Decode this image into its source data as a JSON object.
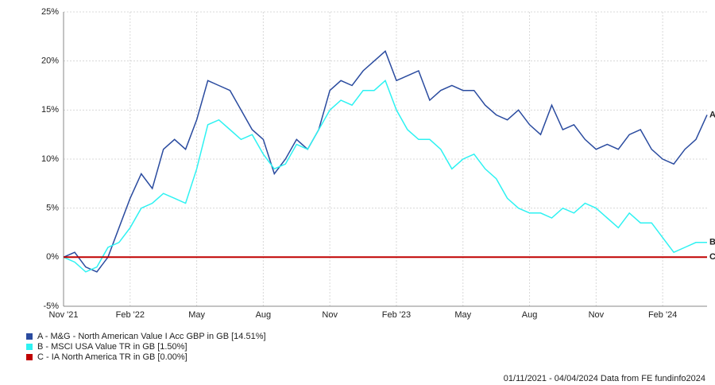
{
  "chart_data": {
    "type": "line",
    "categories": [
      "Nov '21",
      null,
      null,
      null,
      null,
      null,
      "Feb '22",
      null,
      null,
      null,
      null,
      null,
      "May",
      null,
      null,
      null,
      null,
      null,
      "Aug",
      null,
      null,
      null,
      null,
      null,
      "Nov",
      null,
      null,
      null,
      null,
      null,
      "Feb '23",
      null,
      null,
      null,
      null,
      null,
      "May",
      null,
      null,
      null,
      null,
      null,
      "Aug",
      null,
      null,
      null,
      null,
      null,
      "Nov",
      null,
      null,
      null,
      null,
      null,
      "Feb '24",
      null,
      null,
      null,
      null
    ],
    "series": [
      {
        "name": "A - M&G - North American Value I Acc GBP in GB [14.51%]",
        "end_label": "A",
        "color": "#2a4b9f",
        "values": [
          0,
          0.5,
          -1,
          -1.5,
          0,
          3,
          6,
          8.5,
          7,
          11,
          12,
          11,
          14,
          18,
          17.5,
          17,
          15,
          13,
          12,
          8.5,
          10,
          12,
          11,
          13,
          17,
          18,
          17.5,
          19,
          20,
          21,
          18,
          18.5,
          19,
          16,
          17,
          17.5,
          17,
          17,
          15.5,
          14.5,
          14,
          15,
          13.5,
          12.5,
          15.5,
          13,
          13.5,
          12,
          11,
          11.5,
          11,
          12.5,
          13,
          11,
          10,
          9.5,
          11,
          12,
          14.51
        ]
      },
      {
        "name": "B - MSCI USA Value TR in GB [1.50%]",
        "end_label": "B",
        "color": "#2ef2f2",
        "values": [
          0,
          -0.5,
          -1.5,
          -1,
          1,
          1.5,
          3,
          5,
          5.5,
          6.5,
          6,
          5.5,
          9,
          13.5,
          14,
          13,
          12,
          12.5,
          10.5,
          9,
          9.5,
          11.5,
          11,
          13,
          15,
          16,
          15.5,
          17,
          17,
          18,
          15,
          13,
          12,
          12,
          11,
          9,
          10,
          10.5,
          9,
          8,
          6,
          5,
          4.5,
          4.5,
          4,
          5,
          4.5,
          5.5,
          5,
          4,
          3,
          4.5,
          3.5,
          3.5,
          2,
          0.5,
          1,
          1.5,
          1.5
        ]
      },
      {
        "name": "C - IA North America TR in GB [0.00%]",
        "end_label": "C",
        "color": "#c00000",
        "values": [
          0,
          0,
          0,
          0,
          0,
          0,
          0,
          0,
          0,
          0,
          0,
          0,
          0,
          0,
          0,
          0,
          0,
          0,
          0,
          0,
          0,
          0,
          0,
          0,
          0,
          0,
          0,
          0,
          0,
          0,
          0,
          0,
          0,
          0,
          0,
          0,
          0,
          0,
          0,
          0,
          0,
          0,
          0,
          0,
          0,
          0,
          0,
          0,
          0,
          0,
          0,
          0,
          0,
          0,
          0,
          0,
          0,
          0,
          0
        ]
      }
    ],
    "ylim": [
      -5,
      25
    ],
    "yticks": [
      {
        "value": -5,
        "label": "-5%"
      },
      {
        "value": 0,
        "label": "0%"
      },
      {
        "value": 5,
        "label": "5%"
      },
      {
        "value": 10,
        "label": "10%"
      },
      {
        "value": 15,
        "label": "15%"
      },
      {
        "value": 20,
        "label": "20%"
      },
      {
        "value": 25,
        "label": "25%"
      }
    ],
    "grid": true,
    "footer": "01/11/2021 - 04/04/2024 Data from FE fundinfo2024"
  }
}
